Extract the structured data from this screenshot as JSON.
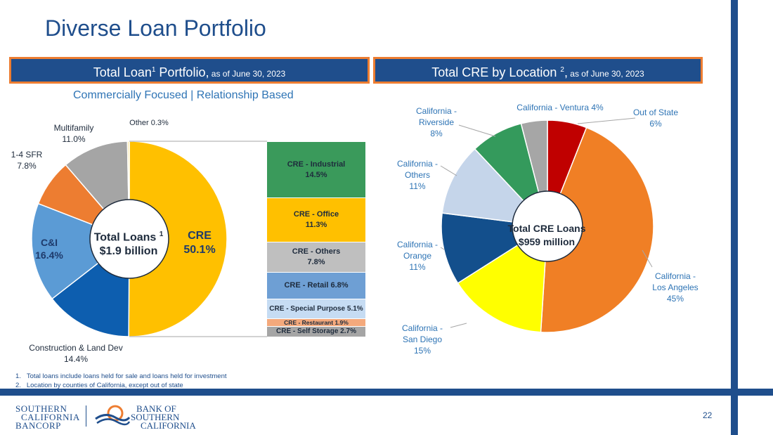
{
  "page": {
    "title": "Diverse Loan Portfolio",
    "subtitle": "Commercially Focused | Relationship Based",
    "page_number": "22"
  },
  "left_header": {
    "main": "Total Loan",
    "sup": "1",
    "rest": " Portfolio,",
    "date": " as of June 30, 2023"
  },
  "right_header": {
    "main": "Total CRE by Location ",
    "sup": "2",
    "rest": ",",
    "date": " as of June 30, 2023"
  },
  "footnotes": [
    "1.   Total loans include loans held for sale and loans held for investment",
    "2.   Location by counties of California, except out of state"
  ],
  "logos": {
    "left": [
      "SOUTHERN",
      "CALIFORNIA",
      "BANCORP"
    ],
    "right": [
      "BANK OF",
      "SOUTHERN",
      "CALIFORNIA"
    ]
  },
  "colors": {
    "navy": "#1f4e8c",
    "orange_border": "#ed7d31"
  },
  "chart_data": [
    {
      "type": "pie",
      "title": "Total Loan Portfolio",
      "center_label": {
        "line1": "Total Loans",
        "sup": "1",
        "line2": "$1.9 billion"
      },
      "slices": [
        {
          "name": "CRE",
          "label": "CRE",
          "value_label": "50.1%",
          "value": 50.1,
          "color": "#ffc000"
        },
        {
          "name": "Construction & Land Dev",
          "label": "Construction & Land Dev",
          "value_label": "14.4%",
          "value": 14.4,
          "color": "#0d5eaf"
        },
        {
          "name": "C&I",
          "label": "C&I",
          "value_label": "16.4%",
          "value": 16.4,
          "color": "#5b9bd5"
        },
        {
          "name": "1-4 SFR",
          "label": "1-4 SFR",
          "value_label": "7.8%",
          "value": 7.8,
          "color": "#ed7d31"
        },
        {
          "name": "Multifamily",
          "label": "Multifamily",
          "value_label": "11.0%",
          "value": 11.0,
          "color": "#a5a5a5"
        },
        {
          "name": "Other",
          "label": "Other 0.3%",
          "value_label": "",
          "value": 0.3,
          "color": "#ffe699"
        }
      ],
      "cre_breakdown": [
        {
          "name": "CRE - Industrial",
          "value_label": "14.5%",
          "value": 14.5,
          "color": "#3a9a5b"
        },
        {
          "name": "CRE - Office",
          "value_label": "11.3%",
          "value": 11.3,
          "color": "#ffc000"
        },
        {
          "name": "CRE - Others",
          "value_label": "7.8%",
          "value": 7.8,
          "color": "#bfbfbf"
        },
        {
          "name": "CRE - Retail",
          "value_label": "6.8%",
          "value": 6.8,
          "color": "#6e9fd4"
        },
        {
          "name": "CRE - Special Purpose",
          "value_label": "5.1%",
          "value": 5.1,
          "color": "#c6dcf3"
        },
        {
          "name": "CRE - Restaurant",
          "value_label": "1.9%",
          "value": 1.9,
          "color": "#f4a97c"
        },
        {
          "name": "CRE - Self Storage",
          "value_label": "2.7%",
          "value": 2.7,
          "color": "#a5a5a5"
        }
      ]
    },
    {
      "type": "pie",
      "title": "Total CRE by Location",
      "center_label": {
        "line1": "Total CRE Loans",
        "line2": "$959 million"
      },
      "slices": [
        {
          "name": "Out of State",
          "lines": [
            "Out of State",
            "6%"
          ],
          "value": 6,
          "color": "#c00000"
        },
        {
          "name": "California - Los Angeles",
          "lines": [
            "California -",
            "Los Angeles",
            "45%"
          ],
          "value": 45,
          "color": "#f07f25"
        },
        {
          "name": "California - San Diego",
          "lines": [
            "California -",
            "San Diego",
            "15%"
          ],
          "value": 15,
          "color": "#ffff00"
        },
        {
          "name": "California - Orange",
          "lines": [
            "California -",
            "Orange",
            "11%"
          ],
          "value": 11,
          "color": "#134f8c"
        },
        {
          "name": "California - Others",
          "lines": [
            "California -",
            "Others",
            "11%"
          ],
          "value": 11,
          "color": "#c5d5ea"
        },
        {
          "name": "California - Riverside",
          "lines": [
            "California -",
            "Riverside",
            "8%"
          ],
          "value": 8,
          "color": "#349a5c"
        },
        {
          "name": "California - Ventura",
          "lines": [
            "California - Ventura 4%"
          ],
          "value": 4,
          "color": "#a6a6a6"
        }
      ]
    }
  ]
}
